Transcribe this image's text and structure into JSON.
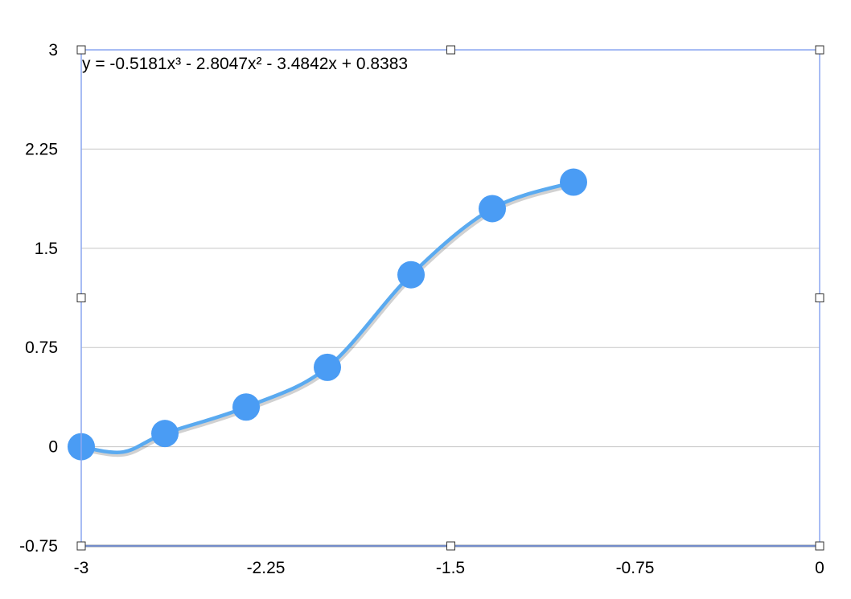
{
  "colors": {
    "marker": "#4a9cf4",
    "trendline": "#5aaaf0",
    "gridline": "#c6c6c6",
    "x_axis_line": "#2e3f55",
    "selection_frame": "#8aa6f0",
    "handle_stroke": "#333333",
    "handle_fill": "#ffffff"
  },
  "chart_data": {
    "type": "scatter",
    "title": "",
    "xlabel": "",
    "ylabel": "",
    "xlim": [
      -3,
      0
    ],
    "ylim": [
      -0.75,
      3
    ],
    "x_ticks": [
      -3,
      -2.25,
      -1.5,
      -0.75,
      0
    ],
    "x_tick_labels": [
      "-3",
      "-2.25",
      "-1.5",
      "-0.75",
      "0"
    ],
    "y_ticks": [
      -0.75,
      0,
      0.75,
      1.5,
      2.25,
      3
    ],
    "y_tick_labels": [
      "-0.75",
      "0",
      "0.75",
      "1.5",
      "2.25",
      "3"
    ],
    "grid": "horizontal",
    "legend": "none",
    "series": [
      {
        "x": [
          -3.0,
          -2.66,
          -2.33,
          -2.0,
          -1.66,
          -1.33,
          -1.0
        ],
        "y": [
          0.0,
          0.1,
          0.3,
          0.6,
          1.3,
          1.8,
          2.0
        ]
      }
    ],
    "trendline": {
      "type": "polynomial",
      "order": 3,
      "coefficients": [
        -0.5181,
        -2.8047,
        -3.4842,
        0.8383
      ],
      "domain": [
        -3.0,
        -1.0
      ],
      "equation_label": "y = -0.5181x³ - 2.8047x² - 3.4842x + 0.8383"
    }
  }
}
